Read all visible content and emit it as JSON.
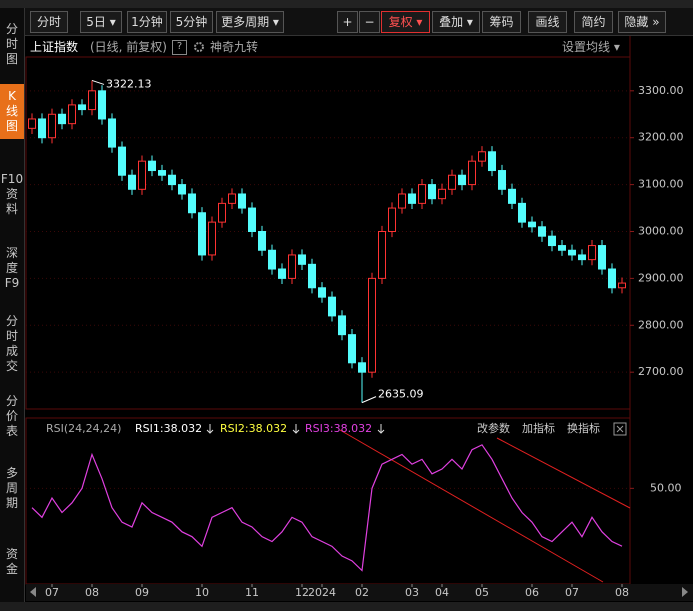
{
  "toolbar": {
    "buttons": [
      "分时",
      "5日 ▾",
      "1分钟",
      "5分钟",
      "更多周期 ▾",
      "+",
      "−",
      "复权 ▾",
      "叠加 ▾",
      "筹码",
      "画线",
      "简约",
      "隐藏 »"
    ]
  },
  "sidebar": {
    "tabs": [
      "分时图",
      "K线图",
      "F10资料",
      "深度F9",
      "分时成交",
      "分价表",
      "多周期",
      "资金"
    ]
  },
  "header": {
    "name": "上证指数",
    "mode": "(日线, 前复权)",
    "help": "?",
    "indicator": "神奇九转",
    "ma_settings": "设置均线 ▾"
  },
  "chart_data": [
    {
      "type": "candlestick",
      "open": [
        3220,
        3240,
        3200,
        3250,
        3230,
        3270,
        3260,
        3300,
        3240,
        3180,
        3120,
        3090,
        3150,
        3130,
        3120,
        3100,
        3080,
        3040,
        2950,
        3020,
        3060,
        3080,
        3050,
        3000,
        2960,
        2920,
        2900,
        2950,
        2930,
        2880,
        2860,
        2820,
        2780,
        2720,
        2700,
        2900,
        3000,
        3050,
        3080,
        3060,
        3100,
        3070,
        3090,
        3120,
        3100,
        3150,
        3170,
        3130,
        3090,
        3060,
        3020,
        3010,
        2990,
        2970,
        2960,
        2950,
        2940,
        2970,
        2920,
        2880
      ],
      "high": [
        3252,
        3252,
        3262,
        3262,
        3282,
        3282,
        3322.13,
        3312,
        3252,
        3192,
        3132,
        3162,
        3162,
        3142,
        3132,
        3112,
        3092,
        3052,
        3032,
        3072,
        3092,
        3092,
        3062,
        3012,
        2972,
        2932,
        2962,
        2962,
        2942,
        2892,
        2872,
        2832,
        2792,
        2732,
        2912,
        3012,
        3062,
        3092,
        3092,
        3112,
        3112,
        3102,
        3132,
        3132,
        3162,
        3182,
        3182,
        3142,
        3102,
        3072,
        3032,
        3022,
        3002,
        2982,
        2972,
        2962,
        2982,
        2982,
        2932,
        2902
      ],
      "low": [
        3208,
        3188,
        3188,
        3218,
        3218,
        3248,
        3248,
        3228,
        3168,
        3108,
        3078,
        3078,
        3118,
        3108,
        3088,
        3068,
        3028,
        2938,
        2938,
        3008,
        3048,
        3038,
        2988,
        2948,
        2908,
        2888,
        2888,
        2918,
        2868,
        2848,
        2808,
        2768,
        2708,
        2635.09,
        2688,
        2888,
        2988,
        3038,
        3048,
        3048,
        3058,
        3058,
        3078,
        3088,
        3088,
        3138,
        3118,
        3078,
        3048,
        3008,
        2998,
        2978,
        2958,
        2948,
        2938,
        2928,
        2928,
        2908,
        2868,
        2868
      ],
      "close": [
        3240,
        3200,
        3250,
        3230,
        3270,
        3260,
        3300,
        3240,
        3180,
        3120,
        3090,
        3150,
        3130,
        3120,
        3100,
        3080,
        3040,
        2950,
        3020,
        3060,
        3080,
        3050,
        3000,
        2960,
        2920,
        2900,
        2950,
        2930,
        2880,
        2860,
        2820,
        2780,
        2720,
        2700,
        2900,
        3000,
        3050,
        3080,
        3060,
        3100,
        3070,
        3090,
        3120,
        3100,
        3150,
        3170,
        3130,
        3090,
        3060,
        3020,
        3010,
        2990,
        2970,
        2960,
        2950,
        2940,
        2970,
        2920,
        2880,
        2890
      ],
      "up_color": "#ff3232",
      "down_color": "#54fcfc",
      "ylim": [
        2630,
        3370
      ],
      "yticks": [
        {
          "value": 2700,
          "label": "2700.00"
        },
        {
          "value": 2800,
          "label": "2800.00"
        },
        {
          "value": 2900,
          "label": "2900.00"
        },
        {
          "value": 3000,
          "label": "3000.00"
        },
        {
          "value": 3100,
          "label": "3100.00"
        },
        {
          "value": 3200,
          "label": "3200.00"
        },
        {
          "value": 3300,
          "label": "3300.00"
        }
      ],
      "grid": true
    },
    {
      "type": "line",
      "title": "RSI(24,24,24)",
      "legend": [
        {
          "label": "RSI1:38.032",
          "color": "#ffffff"
        },
        {
          "label": "RSI2:38.032",
          "color": "#ffff40"
        },
        {
          "label": "RSI3:38.032",
          "color": "#e040e0"
        }
      ],
      "actions": [
        "改参数",
        "加指标",
        "换指标"
      ],
      "series": [
        {
          "color": "#e040e0",
          "values": [
            46,
            44,
            48,
            45,
            47,
            50,
            57,
            52,
            46,
            43,
            42,
            47,
            45,
            44,
            43,
            41,
            40,
            38,
            44,
            45,
            46,
            43,
            42,
            40,
            39,
            41,
            44,
            43,
            40,
            39,
            38,
            36,
            35,
            33,
            50,
            55,
            56,
            57,
            55,
            56,
            53,
            54,
            56,
            54,
            58,
            59,
            56,
            52,
            48,
            45,
            43,
            40,
            39,
            41,
            43,
            40,
            44,
            41,
            39,
            38.032
          ]
        }
      ],
      "ylim": [
        30,
        60
      ],
      "yticks": [
        {
          "value": 50,
          "label": "50.00"
        }
      ],
      "xticks": [
        {
          "value": 2,
          "label": "07"
        },
        {
          "value": 6,
          "label": "08"
        },
        {
          "value": 11,
          "label": "09"
        },
        {
          "value": 17,
          "label": "10"
        },
        {
          "value": 22,
          "label": "11"
        },
        {
          "value": 27,
          "label": "12"
        },
        {
          "value": 29,
          "label": "2024"
        },
        {
          "value": 33,
          "label": "02"
        },
        {
          "value": 38,
          "label": "03"
        },
        {
          "value": 41,
          "label": "04"
        },
        {
          "value": 45,
          "label": "05"
        },
        {
          "value": 50,
          "label": "06"
        },
        {
          "value": 54,
          "label": "07"
        },
        {
          "value": 59,
          "label": "08"
        }
      ]
    }
  ]
}
